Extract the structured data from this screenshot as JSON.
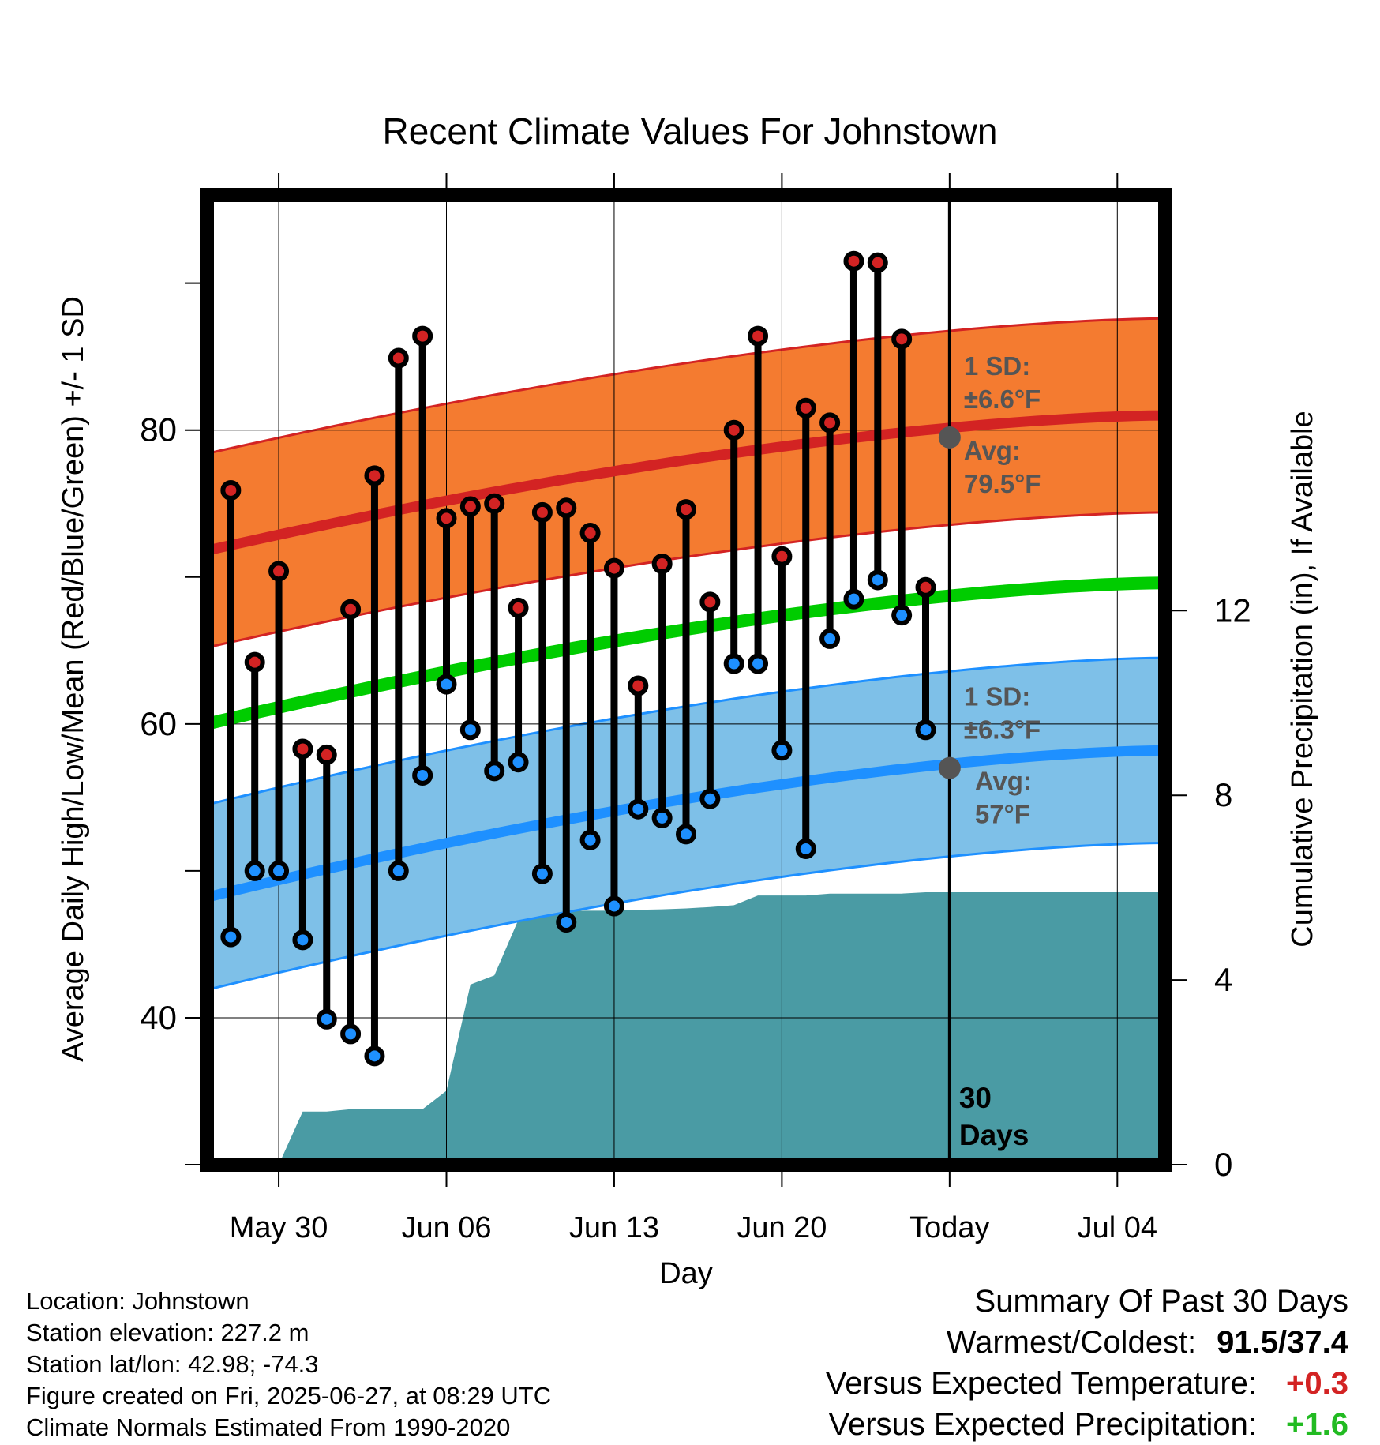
{
  "chart_data": {
    "type": "line",
    "title": "Recent Climate Values For Johnstown",
    "xlabel": "Day",
    "ylabel_left": "Average Daily High/Low/Mean (Red/Blue/Green) +/- 1 SD",
    "ylabel_right": "Cumulative Precipitation (in), If Available",
    "x_domain": [
      "2025-05-27",
      "2025-07-06"
    ],
    "temperature_range": [
      30,
      96
    ],
    "precip_range": [
      0,
      21
    ],
    "x_ticks": [
      {
        "date": "2025-05-30",
        "label": "May 30"
      },
      {
        "date": "2025-06-06",
        "label": "Jun 06"
      },
      {
        "date": "2025-06-13",
        "label": "Jun 13"
      },
      {
        "date": "2025-06-20",
        "label": "Jun 20"
      },
      {
        "date": "2025-06-27",
        "label": "Today"
      },
      {
        "date": "2025-07-04",
        "label": "Jul 04"
      }
    ],
    "y_ticks_left": [
      40,
      60,
      80
    ],
    "y_ticks_right": [
      0,
      4,
      8,
      12
    ],
    "normal_high": {
      "start": 71.8,
      "end": 81.0,
      "sd": 6.6
    },
    "normal_low": {
      "start": 48.2,
      "end": 58.2,
      "sd": 6.3
    },
    "normal_mean": {
      "start": 60.0,
      "end": 69.6
    },
    "today": {
      "date": "2025-06-27",
      "label_line1": "30",
      "label_line2": "Days",
      "high_avg": 79.5,
      "low_avg": 57,
      "high_sd_title": "1 SD:",
      "high_sd_text": "±6.6°F",
      "high_avg_title": "Avg:",
      "high_avg_text": "79.5°F",
      "low_sd_title": "1 SD:",
      "low_sd_text": "±6.3°F",
      "low_avg_title": "Avg:",
      "low_avg_text": "57°F"
    },
    "daily": [
      {
        "date": "2025-05-28",
        "high": 75.9,
        "low": 45.5
      },
      {
        "date": "2025-05-29",
        "high": 64.2,
        "low": 50.0
      },
      {
        "date": "2025-05-30",
        "high": 70.4,
        "low": 50.0
      },
      {
        "date": "2025-05-31",
        "high": 58.3,
        "low": 45.3
      },
      {
        "date": "2025-06-01",
        "high": 57.9,
        "low": 39.9
      },
      {
        "date": "2025-06-02",
        "high": 67.8,
        "low": 38.9
      },
      {
        "date": "2025-06-03",
        "high": 76.9,
        "low": 37.4
      },
      {
        "date": "2025-06-04",
        "high": 84.9,
        "low": 50.0
      },
      {
        "date": "2025-06-05",
        "high": 86.4,
        "low": 56.5
      },
      {
        "date": "2025-06-06",
        "high": 74.0,
        "low": 62.7
      },
      {
        "date": "2025-06-07",
        "high": 74.8,
        "low": 59.6
      },
      {
        "date": "2025-06-08",
        "high": 75.0,
        "low": 56.8
      },
      {
        "date": "2025-06-09",
        "high": 67.9,
        "low": 57.4
      },
      {
        "date": "2025-06-10",
        "high": 74.4,
        "low": 49.8
      },
      {
        "date": "2025-06-11",
        "high": 74.7,
        "low": 46.5
      },
      {
        "date": "2025-06-12",
        "high": 73.0,
        "low": 52.1
      },
      {
        "date": "2025-06-13",
        "high": 70.6,
        "low": 47.6
      },
      {
        "date": "2025-06-14",
        "high": 62.6,
        "low": 54.2
      },
      {
        "date": "2025-06-15",
        "high": 70.9,
        "low": 53.6
      },
      {
        "date": "2025-06-16",
        "high": 74.6,
        "low": 52.5
      },
      {
        "date": "2025-06-17",
        "high": 68.3,
        "low": 54.9
      },
      {
        "date": "2025-06-18",
        "high": 80.0,
        "low": 64.1
      },
      {
        "date": "2025-06-19",
        "high": 86.4,
        "low": 64.1
      },
      {
        "date": "2025-06-20",
        "high": 71.4,
        "low": 58.2
      },
      {
        "date": "2025-06-21",
        "high": 81.5,
        "low": 51.5
      },
      {
        "date": "2025-06-22",
        "high": 80.5,
        "low": 65.8
      },
      {
        "date": "2025-06-23",
        "high": 91.5,
        "low": 68.5
      },
      {
        "date": "2025-06-24",
        "high": 91.4,
        "low": 69.8
      },
      {
        "date": "2025-06-25",
        "high": 86.2,
        "low": 67.4
      },
      {
        "date": "2025-06-26",
        "high": 69.3,
        "low": 59.6
      }
    ],
    "precip_cumulative": [
      {
        "date": "2025-05-30",
        "value": 0.0
      },
      {
        "date": "2025-05-31",
        "value": 1.15
      },
      {
        "date": "2025-06-01",
        "value": 1.15
      },
      {
        "date": "2025-06-02",
        "value": 1.2
      },
      {
        "date": "2025-06-03",
        "value": 1.2
      },
      {
        "date": "2025-06-04",
        "value": 1.2
      },
      {
        "date": "2025-06-05",
        "value": 1.2
      },
      {
        "date": "2025-06-06",
        "value": 1.6
      },
      {
        "date": "2025-06-07",
        "value": 3.9
      },
      {
        "date": "2025-06-08",
        "value": 4.1
      },
      {
        "date": "2025-06-09",
        "value": 5.3
      },
      {
        "date": "2025-06-10",
        "value": 5.5
      },
      {
        "date": "2025-06-11",
        "value": 5.5
      },
      {
        "date": "2025-06-12",
        "value": 5.5
      },
      {
        "date": "2025-06-13",
        "value": 5.5
      },
      {
        "date": "2025-06-14",
        "value": 5.52
      },
      {
        "date": "2025-06-15",
        "value": 5.53
      },
      {
        "date": "2025-06-16",
        "value": 5.55
      },
      {
        "date": "2025-06-17",
        "value": 5.58
      },
      {
        "date": "2025-06-18",
        "value": 5.62
      },
      {
        "date": "2025-06-19",
        "value": 5.83
      },
      {
        "date": "2025-06-20",
        "value": 5.83
      },
      {
        "date": "2025-06-21",
        "value": 5.83
      },
      {
        "date": "2025-06-22",
        "value": 5.87
      },
      {
        "date": "2025-06-23",
        "value": 5.87
      },
      {
        "date": "2025-06-24",
        "value": 5.87
      },
      {
        "date": "2025-06-25",
        "value": 5.87
      },
      {
        "date": "2025-06-26",
        "value": 5.9
      },
      {
        "date": "2025-06-27",
        "value": 5.9
      },
      {
        "date": "2025-07-06",
        "value": 5.9
      }
    ],
    "grid": true,
    "legend": "none"
  },
  "colors": {
    "high": "#d32323",
    "low": "#1e90ff",
    "mean": "#00cc00",
    "high_band": "#f47b30",
    "low_band": "#7ec0e8",
    "precip": "#4a9ba4",
    "annotation": "#555555",
    "positive_temp": "#d32323",
    "positive_precip": "#22bb22"
  },
  "info": {
    "location": "Location: Johnstown",
    "elevation": "Station elevation: 227.2 m",
    "latlon": "Station lat/lon: 42.98; -74.3",
    "created": "Figure created on Fri, 2025-06-27, at 08:29 UTC",
    "normals": "Climate Normals Estimated From 1990-2020"
  },
  "summary": {
    "title": "Summary Of Past 30 Days",
    "warm_cold_label": "Warmest/Coldest:",
    "warm_cold_value": "91.5/37.4",
    "temp_label": "Versus Expected Temperature:",
    "temp_value": "+0.3",
    "precip_label": "Versus Expected Precipitation:",
    "precip_value": "+1.6"
  }
}
